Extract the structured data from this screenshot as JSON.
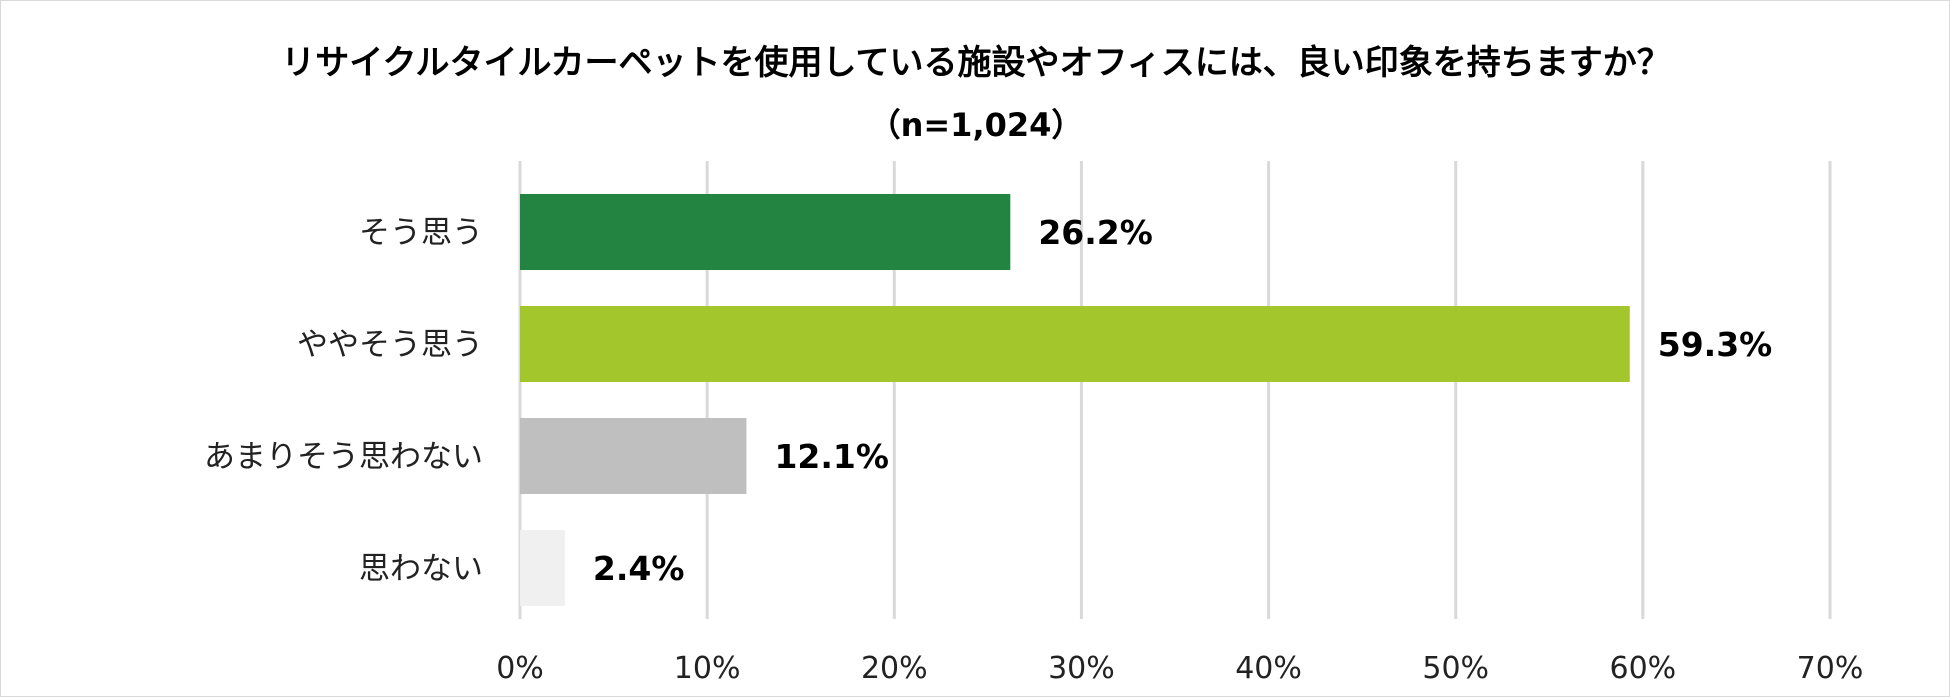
{
  "chart_data": {
    "type": "bar",
    "orientation": "horizontal",
    "title": "リサイクルタイルカーペットを使用している施設やオフィスには、良い印象を持ちますか？",
    "subtitle": "（n=1,024）",
    "categories": [
      "そう思う",
      "ややそう思う",
      "あまりそう思わない",
      "思わない"
    ],
    "values": [
      26.2,
      59.3,
      12.1,
      2.4
    ],
    "value_labels": [
      "26.2%",
      "59.3%",
      "12.1%",
      "2.4%"
    ],
    "bar_colors": [
      "#228440",
      "#a2c62b",
      "#bfbfbf",
      "#f0f0f0"
    ],
    "xlim": [
      0,
      70
    ],
    "x_ticks": [
      0,
      10,
      20,
      30,
      40,
      50,
      60,
      70
    ],
    "x_tick_labels": [
      "0%",
      "10%",
      "20%",
      "30%",
      "40%",
      "50%",
      "60%",
      "70%"
    ],
    "grid": true,
    "legend": "none",
    "xlabel": "",
    "ylabel": ""
  }
}
